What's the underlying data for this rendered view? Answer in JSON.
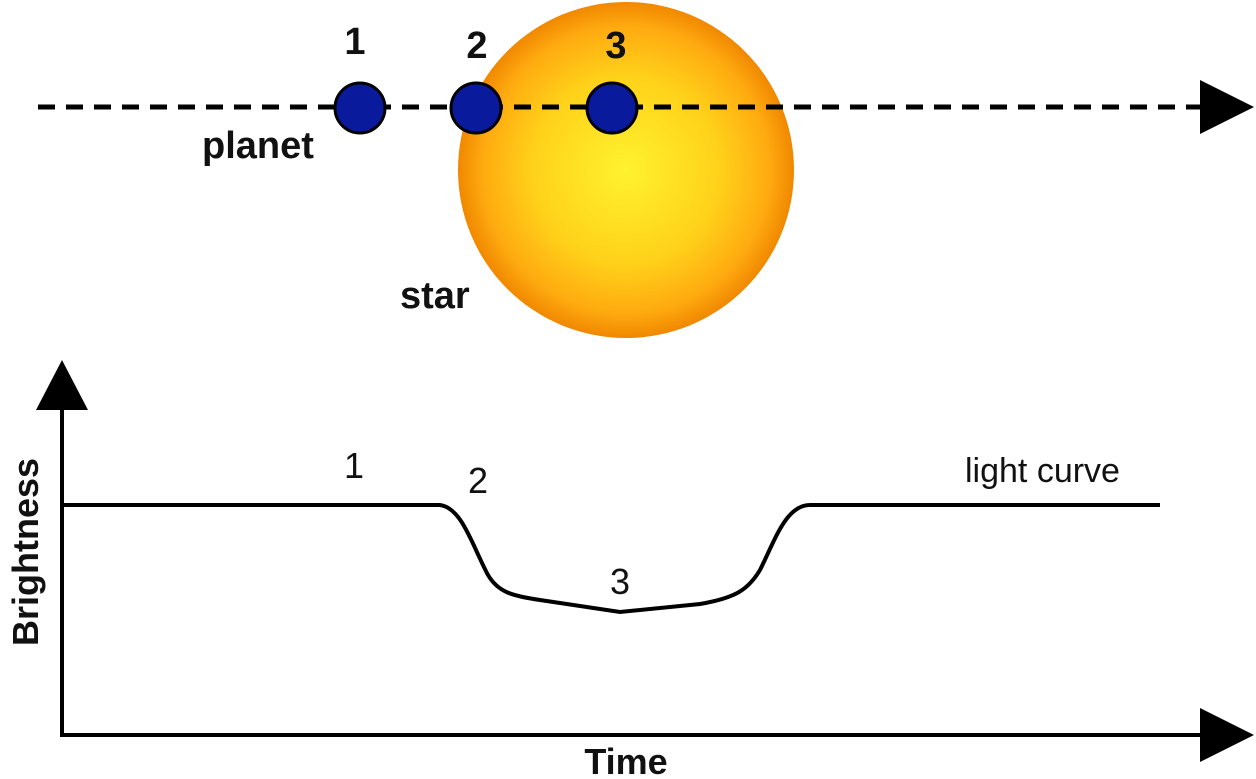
{
  "transit": {
    "planet_label": "planet",
    "star_label": "star",
    "positions": [
      {
        "label": "1"
      },
      {
        "label": "2"
      },
      {
        "label": "3"
      }
    ]
  },
  "light_curve": {
    "label": "light curve",
    "point_labels": [
      "1",
      "2",
      "3"
    ],
    "y_axis_label": "Brightness",
    "x_axis_label": "Time"
  },
  "colors": {
    "planet": "#0a1a9c",
    "star_center": "#ffef2a",
    "star_edge": "#f08a00",
    "line": "#000000"
  }
}
